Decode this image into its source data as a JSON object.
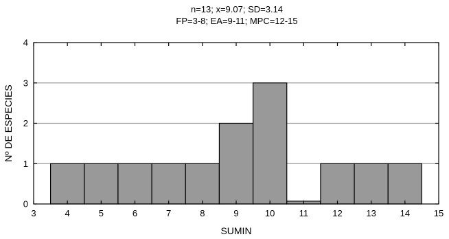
{
  "chart_data": {
    "type": "bar",
    "title_lines": [
      "n=13; x=9.07; SD=3.14",
      "FP=3-8; EA=9-11; MPC=12-15"
    ],
    "xlabel": "SUMIN",
    "ylabel": "Nº DE ESPECIES",
    "categories": [
      "4",
      "5",
      "6",
      "7",
      "8",
      "9",
      "10",
      "11",
      "12",
      "13",
      "14"
    ],
    "values": [
      1,
      1,
      1,
      1,
      1,
      2,
      3,
      0.07,
      1,
      1,
      1
    ],
    "xlim": [
      3,
      15
    ],
    "ylim": [
      0,
      4
    ],
    "x_ticks": [
      "3",
      "4",
      "5",
      "6",
      "7",
      "8",
      "9",
      "10",
      "11",
      "12",
      "13",
      "14",
      "15"
    ],
    "y_ticks": [
      "0",
      "1",
      "2",
      "3",
      "4"
    ],
    "grid": "horizontal",
    "bar_color": "#999999",
    "bar_edge_color": "#000000",
    "grid_color": "#9a9a9a"
  }
}
